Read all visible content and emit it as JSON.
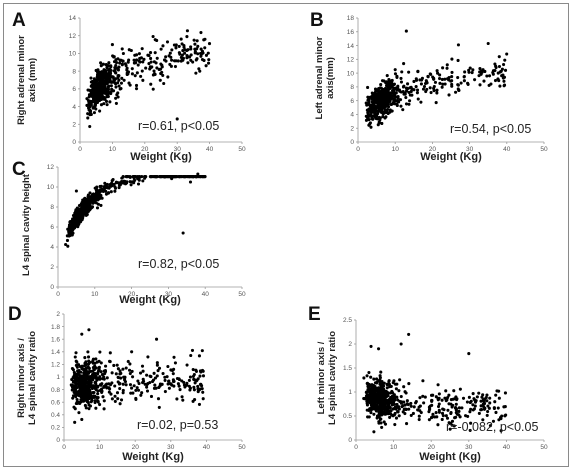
{
  "chart_data": [
    {
      "panel": "A",
      "type": "scatter",
      "xlabel": "Weight (Kg)",
      "ylabel": [
        "Right adrenal minor",
        "axis (mm)"
      ],
      "xlim": [
        0,
        50
      ],
      "ylim": [
        0,
        14
      ],
      "xticks": [
        "0",
        "10",
        "20",
        "30",
        "40",
        "50"
      ],
      "yticks": [
        "0",
        "2",
        "4",
        "6",
        "8",
        "10",
        "12",
        "14"
      ],
      "annotation": "r=0.61, p<0.05",
      "cluster": {
        "n": 560,
        "x_min": 2,
        "x_max": 40,
        "x_mode": 6,
        "y_base": 4.6,
        "y_ref_x": 3,
        "y_slope": 2.2,
        "y_sd": 1.05
      },
      "outliers": [
        [
          10,
          11
        ],
        [
          27,
          11.3
        ],
        [
          33,
          11.9
        ],
        [
          30,
          2.6
        ]
      ]
    },
    {
      "panel": "B",
      "type": "scatter",
      "xlabel": "Weight (Kg)",
      "ylabel": [
        "Left adrenal minor",
        "axis(mm)"
      ],
      "xlim": [
        0,
        50
      ],
      "ylim": [
        0,
        18
      ],
      "xticks": [
        "0",
        "10",
        "20",
        "30",
        "40",
        "50"
      ],
      "yticks": [
        "0",
        "2",
        "4",
        "6",
        "8",
        "10",
        "12",
        "14",
        "16",
        "18"
      ],
      "annotation": "r=0.54, p<0.05",
      "cluster": {
        "n": 560,
        "x_min": 2,
        "x_max": 40,
        "x_mode": 6,
        "y_base": 4.4,
        "y_ref_x": 3,
        "y_slope": 2.2,
        "y_sd": 1.2
      },
      "outliers": [
        [
          13,
          16.1
        ],
        [
          35,
          14.3
        ],
        [
          27,
          14.1
        ],
        [
          10,
          10.5
        ],
        [
          24,
          11.2
        ],
        [
          37,
          11
        ]
      ]
    },
    {
      "panel": "C",
      "type": "scatter",
      "xlabel": "Weight (Kg)",
      "ylabel": [
        "L4 spinal cavity height"
      ],
      "xlim": [
        0,
        50
      ],
      "ylim": [
        0,
        12
      ],
      "xticks": [
        "0",
        "10",
        "20",
        "30",
        "40",
        "50"
      ],
      "yticks": [
        "0",
        "2",
        "4",
        "6",
        "8",
        "10",
        "12"
      ],
      "annotation": "r=0.82, p<0.05",
      "cluster": {
        "n": 600,
        "x_min": 2,
        "x_max": 40,
        "x_mode": 6,
        "y_base": 5.4,
        "y_ref_x": 3,
        "y_slope": 2.9,
        "y_sd": 0.45
      },
      "outliers": [
        [
          5,
          9.6
        ],
        [
          38,
          11.3
        ],
        [
          34,
          5.4
        ],
        [
          29,
          11
        ],
        [
          36,
          10.5
        ]
      ]
    },
    {
      "panel": "D",
      "type": "scatter",
      "xlabel": "Weight (Kg)",
      "ylabel": [
        "Right minor axis /",
        "L4 spinal cavity ratio"
      ],
      "xlim": [
        0,
        50
      ],
      "ylim": [
        0,
        2
      ],
      "xticks": [
        "0",
        "10",
        "20",
        "30",
        "40",
        "50"
      ],
      "yticks": [
        "0",
        "0.2",
        "0.4",
        "0.6",
        "0.8",
        "1",
        "1.2",
        "1.4",
        "1.6",
        "1.8",
        "2"
      ],
      "annotation": "r=0.02, p=0.53",
      "cluster": {
        "n": 620,
        "x_min": 2,
        "x_max": 40,
        "x_mode": 6,
        "y_base": 0.9,
        "y_ref_x": 3,
        "y_slope": 0,
        "y_sd": 0.18
      },
      "outliers": [
        [
          7,
          1.75
        ],
        [
          5,
          1.68
        ],
        [
          26,
          1.6
        ],
        [
          3,
          0.28
        ],
        [
          19,
          1.4
        ]
      ]
    },
    {
      "panel": "E",
      "type": "scatter",
      "xlabel": "Weight (Kg)",
      "ylabel": [
        "Left minor axis /",
        "L4 spinal cavity ratio"
      ],
      "xlim": [
        0,
        50
      ],
      "ylim": [
        0,
        2.5
      ],
      "xticks": [
        "0",
        "10",
        "20",
        "30",
        "40",
        "50"
      ],
      "yticks": [
        "0",
        "0.5",
        "1",
        "1.5",
        "2",
        "2.5"
      ],
      "annotation": "r=-0.082, p<0.05",
      "cluster": {
        "n": 620,
        "x_min": 2,
        "x_max": 40,
        "x_mode": 6,
        "y_base": 0.92,
        "y_ref_x": 3,
        "y_slope": -0.1,
        "y_sd": 0.2
      },
      "outliers": [
        [
          14,
          2.2
        ],
        [
          12,
          2.0
        ],
        [
          6,
          1.9
        ],
        [
          30,
          1.8
        ],
        [
          4,
          1.95
        ]
      ]
    }
  ]
}
